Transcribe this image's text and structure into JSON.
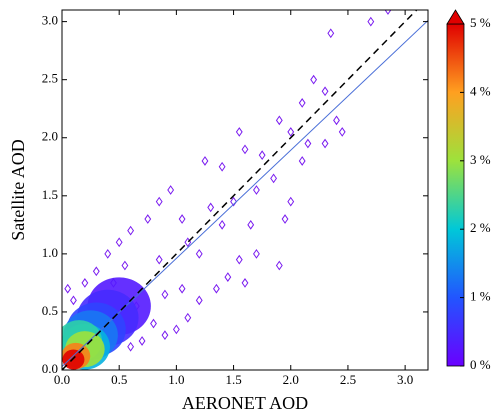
{
  "chart_data": {
    "type": "scatter",
    "xlabel": "AERONET AOD",
    "ylabel": "Satellite AOD",
    "xlim": [
      0,
      3.2
    ],
    "ylim": [
      0,
      3.1
    ],
    "xticks": [
      {
        "value": 0,
        "label": "0.0"
      },
      0.5,
      {
        "value": 1,
        "label": "1.0"
      },
      1.5,
      {
        "value": 2,
        "label": "2.0"
      },
      2.5,
      {
        "value": 3,
        "label": "3.0"
      }
    ],
    "yticks": [
      {
        "value": 0,
        "label": "0.0"
      },
      0.5,
      {
        "value": 1,
        "label": "1.0"
      },
      1.5,
      {
        "value": 2,
        "label": "2.0"
      },
      2.5,
      {
        "value": 3,
        "label": "3.0"
      }
    ],
    "point_color": "#7a1cf0",
    "x": [
      2.85,
      2.7,
      2.35,
      2.2,
      2.3,
      2.1,
      2.4,
      2.45,
      2.0,
      1.9,
      2.1,
      2.3,
      1.55,
      1.6,
      1.4,
      1.25,
      1.7,
      1.85,
      2.0,
      1.95,
      1.65,
      1.7,
      1.55,
      1.9,
      1.45,
      1.35,
      1.2,
      1.6,
      1.1,
      1.0,
      0.9,
      0.8,
      0.7,
      0.6,
      0.95,
      0.85,
      0.75,
      0.6,
      0.5,
      0.4,
      0.3,
      0.2,
      0.05,
      0.1,
      0.45,
      1.1,
      1.3,
      1.05,
      1.5,
      1.2,
      0.85,
      1.4,
      0.65,
      0.35,
      1.75,
      2.15,
      1.05,
      0.25,
      0.55,
      0.9,
      0.5,
      0.4,
      0.3,
      0.25,
      0.2,
      0.15,
      0.2,
      0.12,
      0.1
    ],
    "values": [
      3.1,
      3.0,
      2.9,
      2.5,
      2.4,
      2.3,
      2.15,
      2.05,
      2.05,
      2.15,
      1.8,
      1.95,
      2.05,
      1.9,
      1.75,
      1.8,
      1.55,
      1.65,
      1.45,
      1.3,
      1.25,
      1.0,
      0.95,
      0.9,
      0.8,
      0.7,
      0.6,
      0.75,
      0.45,
      0.35,
      0.3,
      0.4,
      0.25,
      0.2,
      1.55,
      1.45,
      1.3,
      1.2,
      1.1,
      1.0,
      0.85,
      0.75,
      0.7,
      0.6,
      0.75,
      1.1,
      1.4,
      1.3,
      1.45,
      1.0,
      0.95,
      1.25,
      0.55,
      0.5,
      1.85,
      1.95,
      0.7,
      0.25,
      0.9,
      0.65,
      0.55,
      0.45,
      0.35,
      0.3,
      0.2,
      0.25,
      0.18,
      0.12,
      0.09
    ],
    "density": [
      0,
      0,
      0,
      0,
      0,
      0,
      0,
      0,
      0,
      0,
      0,
      0,
      0,
      0,
      0,
      0,
      0,
      0,
      0,
      0,
      0,
      0,
      0,
      0,
      0,
      0,
      0,
      0,
      0,
      0,
      0,
      0,
      0,
      0,
      0,
      0,
      0,
      0,
      0,
      0,
      0,
      0,
      0,
      0,
      0,
      0,
      0,
      0,
      0,
      0,
      0,
      0,
      0,
      0,
      0,
      0,
      0,
      0,
      0,
      0,
      0.3,
      0.5,
      0.8,
      1.3,
      1.8,
      2.3,
      3,
      4.2,
      5
    ],
    "one_to_one": {
      "x": [
        0,
        3.2
      ],
      "y": [
        0,
        3.2
      ]
    },
    "fit_line": {
      "x": [
        0,
        3.2
      ],
      "y": [
        0.03,
        3.01
      ],
      "color": "#4a6fd8"
    },
    "colorbar": {
      "lim": [
        0,
        5
      ],
      "colormap": [
        "#6a00ff",
        "#2255ff",
        "#00c8d8",
        "#9de23c",
        "#ffa020",
        "#e00000"
      ],
      "ticks": [
        {
          "value": 0,
          "label": "0 %"
        },
        {
          "value": 1,
          "label": "1 %"
        },
        {
          "value": 2,
          "label": "2 %"
        },
        {
          "value": 3,
          "label": "3 %"
        },
        {
          "value": 4,
          "label": "4 %"
        },
        {
          "value": 5,
          "label": "5 %"
        }
      ]
    }
  }
}
